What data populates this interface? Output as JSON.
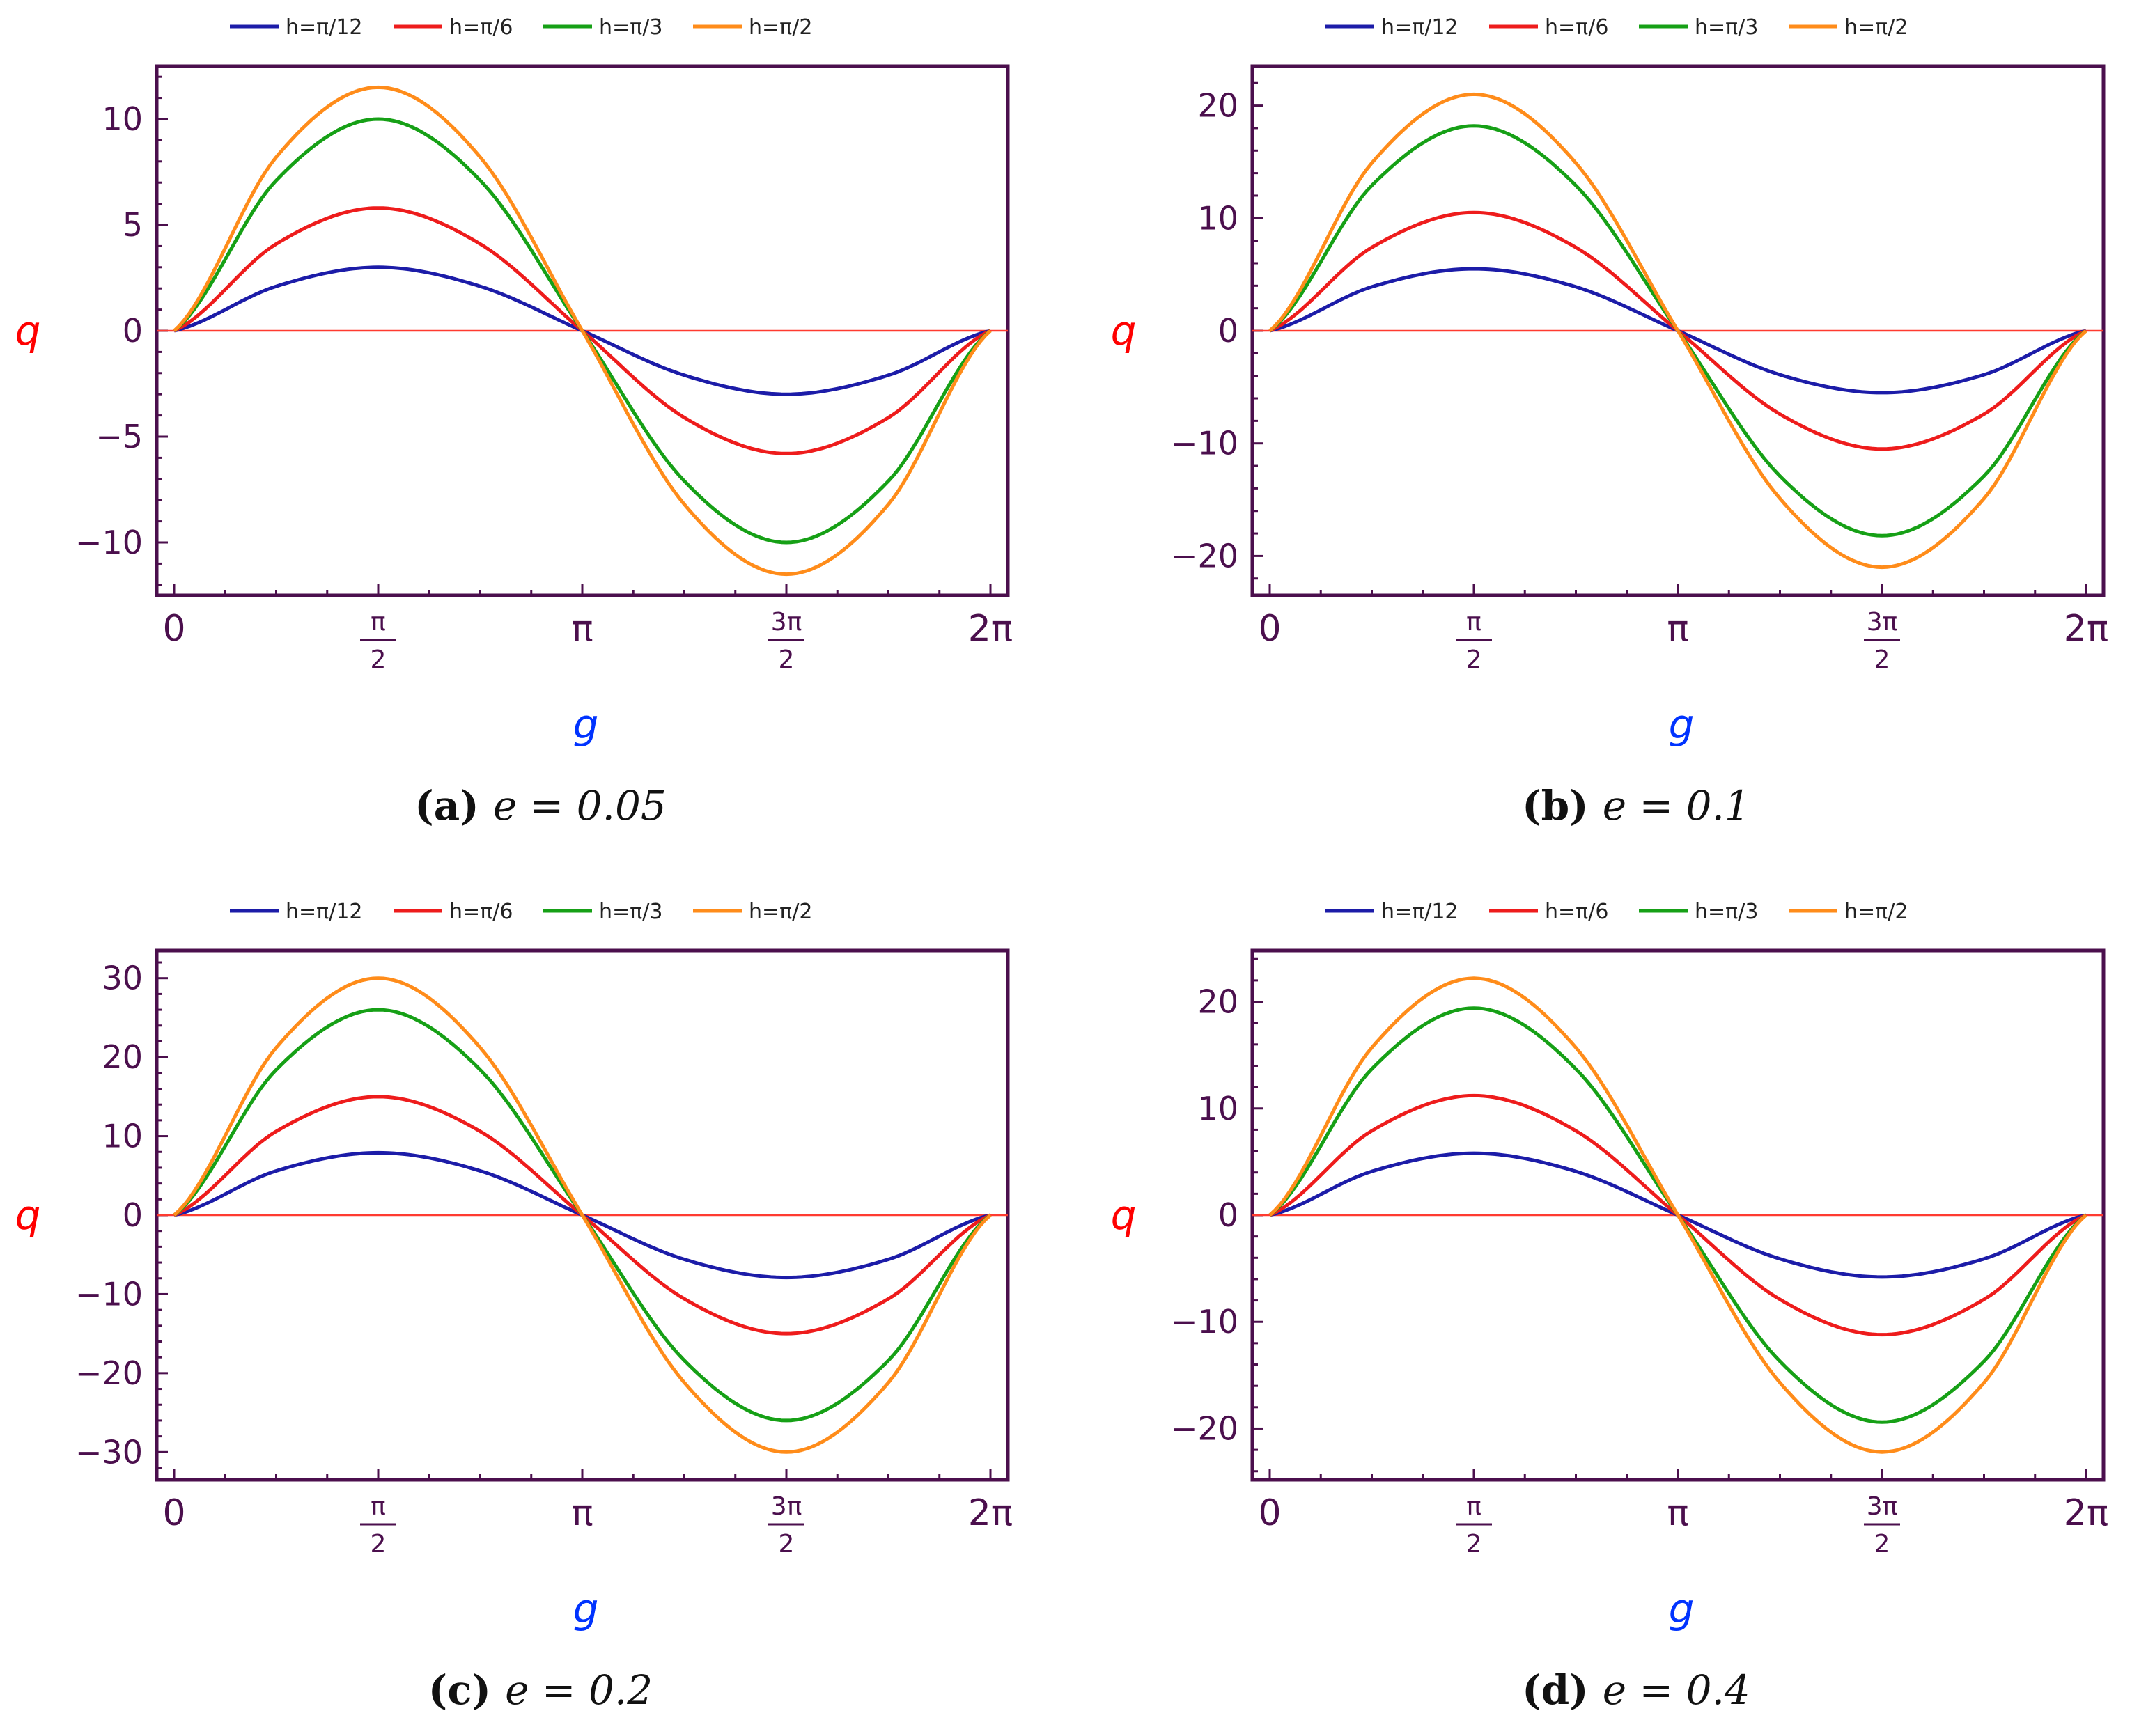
{
  "figure": {
    "panels": [
      {
        "tag": "(a)",
        "eq": "e = 0.05"
      },
      {
        "tag": "(b)",
        "eq": "e = 0.1"
      },
      {
        "tag": "(c)",
        "eq": "e = 0.2"
      },
      {
        "tag": "(d)",
        "eq": "e = 0.4"
      }
    ]
  },
  "colors": {
    "frame": "#4b0f4d",
    "zero_line": "#ff3b30",
    "ylabel": "#ff0000",
    "xlabel": "#0033ff"
  },
  "chart_data": [
    {
      "type": "line",
      "caption": "(a) e = 0.05",
      "xlabel": "g",
      "ylabel": "q",
      "xlim": [
        0,
        6.2832
      ],
      "ylim": [
        -12.5,
        12.5
      ],
      "x_ticks": [
        {
          "value": 0,
          "label": "0"
        },
        {
          "value": 1.5708,
          "label": "π/2"
        },
        {
          "value": 3.1416,
          "label": "π"
        },
        {
          "value": 4.7124,
          "label": "3π/2"
        },
        {
          "value": 6.2832,
          "label": "2π"
        }
      ],
      "y_ticks": [
        -10,
        -5,
        0,
        5,
        10
      ],
      "legend_position": "top-center",
      "x": [
        0,
        0.7854,
        1.5708,
        2.3562,
        3.1416,
        3.927,
        4.7124,
        5.4978,
        6.2832
      ],
      "series": [
        {
          "name": "h=π/12",
          "color": "#1c1ca8",
          "values": [
            0,
            2.1,
            3.0,
            2.1,
            0,
            -2.1,
            -3.0,
            -2.1,
            0
          ]
        },
        {
          "name": "h=π/6",
          "color": "#ee1c1c",
          "values": [
            0,
            4.1,
            5.8,
            4.1,
            0,
            -4.1,
            -5.8,
            -4.1,
            0
          ]
        },
        {
          "name": "h=π/3",
          "color": "#16a016",
          "values": [
            0,
            7.1,
            10.0,
            7.1,
            0,
            -7.1,
            -10.0,
            -7.1,
            0
          ]
        },
        {
          "name": "h=π/2",
          "color": "#ff8c1a",
          "values": [
            0,
            8.2,
            11.5,
            8.2,
            0,
            -8.2,
            -11.5,
            -8.2,
            0
          ]
        }
      ]
    },
    {
      "type": "line",
      "caption": "(b) e = 0.1",
      "xlabel": "g",
      "ylabel": "q",
      "xlim": [
        0,
        6.2832
      ],
      "ylim": [
        -23.5,
        23.5
      ],
      "x_ticks": [
        {
          "value": 0,
          "label": "0"
        },
        {
          "value": 1.5708,
          "label": "π/2"
        },
        {
          "value": 3.1416,
          "label": "π"
        },
        {
          "value": 4.7124,
          "label": "3π/2"
        },
        {
          "value": 6.2832,
          "label": "2π"
        }
      ],
      "y_ticks": [
        -20,
        -10,
        0,
        10,
        20
      ],
      "legend_position": "top-center",
      "x": [
        0,
        0.7854,
        1.5708,
        2.3562,
        3.1416,
        3.927,
        4.7124,
        5.4978,
        6.2832
      ],
      "series": [
        {
          "name": "h=π/12",
          "color": "#1c1ca8",
          "values": [
            0,
            3.9,
            5.5,
            3.9,
            0,
            -3.9,
            -5.5,
            -3.9,
            0
          ]
        },
        {
          "name": "h=π/6",
          "color": "#ee1c1c",
          "values": [
            0,
            7.4,
            10.5,
            7.4,
            0,
            -7.4,
            -10.5,
            -7.4,
            0
          ]
        },
        {
          "name": "h=π/3",
          "color": "#16a016",
          "values": [
            0,
            12.9,
            18.2,
            12.9,
            0,
            -12.9,
            -18.2,
            -12.9,
            0
          ]
        },
        {
          "name": "h=π/2",
          "color": "#ff8c1a",
          "values": [
            0,
            14.9,
            21.0,
            14.9,
            0,
            -14.9,
            -21.0,
            -14.9,
            0
          ]
        }
      ]
    },
    {
      "type": "line",
      "caption": "(c) e = 0.2",
      "xlabel": "g",
      "ylabel": "q",
      "xlim": [
        0,
        6.2832
      ],
      "ylim": [
        -33.5,
        33.5
      ],
      "x_ticks": [
        {
          "value": 0,
          "label": "0"
        },
        {
          "value": 1.5708,
          "label": "π/2"
        },
        {
          "value": 3.1416,
          "label": "π"
        },
        {
          "value": 4.7124,
          "label": "3π/2"
        },
        {
          "value": 6.2832,
          "label": "2π"
        }
      ],
      "y_ticks": [
        -30,
        -20,
        -10,
        0,
        10,
        20,
        30
      ],
      "legend_position": "top-center",
      "x": [
        0,
        0.7854,
        1.5708,
        2.3562,
        3.1416,
        3.927,
        4.7124,
        5.4978,
        6.2832
      ],
      "series": [
        {
          "name": "h=π/12",
          "color": "#1c1ca8",
          "values": [
            0,
            5.6,
            7.9,
            5.6,
            0,
            -5.6,
            -7.9,
            -5.6,
            0
          ]
        },
        {
          "name": "h=π/6",
          "color": "#ee1c1c",
          "values": [
            0,
            10.6,
            15.0,
            10.6,
            0,
            -10.6,
            -15.0,
            -10.6,
            0
          ]
        },
        {
          "name": "h=π/3",
          "color": "#16a016",
          "values": [
            0,
            18.4,
            26.0,
            18.4,
            0,
            -18.4,
            -26.0,
            -18.4,
            0
          ]
        },
        {
          "name": "h=π/2",
          "color": "#ff8c1a",
          "values": [
            0,
            21.2,
            30.0,
            21.2,
            0,
            -21.2,
            -30.0,
            -21.2,
            0
          ]
        }
      ]
    },
    {
      "type": "line",
      "caption": "(d) e = 0.4",
      "xlabel": "g",
      "ylabel": "q",
      "xlim": [
        0,
        6.2832
      ],
      "ylim": [
        -24.8,
        24.8
      ],
      "x_ticks": [
        {
          "value": 0,
          "label": "0"
        },
        {
          "value": 1.5708,
          "label": "π/2"
        },
        {
          "value": 3.1416,
          "label": "π"
        },
        {
          "value": 4.7124,
          "label": "3π/2"
        },
        {
          "value": 6.2832,
          "label": "2π"
        }
      ],
      "y_ticks": [
        -20,
        -10,
        0,
        10,
        20
      ],
      "legend_position": "top-center",
      "x": [
        0,
        0.7854,
        1.5708,
        2.3562,
        3.1416,
        3.927,
        4.7124,
        5.4978,
        6.2832
      ],
      "series": [
        {
          "name": "h=π/12",
          "color": "#1c1ca8",
          "values": [
            0,
            4.1,
            5.8,
            4.1,
            0,
            -4.1,
            -5.8,
            -4.1,
            0
          ]
        },
        {
          "name": "h=π/6",
          "color": "#ee1c1c",
          "values": [
            0,
            7.9,
            11.2,
            7.9,
            0,
            -7.9,
            -11.2,
            -7.9,
            0
          ]
        },
        {
          "name": "h=π/3",
          "color": "#16a016",
          "values": [
            0,
            13.7,
            19.4,
            13.7,
            0,
            -13.7,
            -19.4,
            -13.7,
            0
          ]
        },
        {
          "name": "h=π/2",
          "color": "#ff8c1a",
          "values": [
            0,
            15.7,
            22.2,
            15.7,
            0,
            -15.7,
            -22.2,
            -15.7,
            0
          ]
        }
      ]
    }
  ]
}
